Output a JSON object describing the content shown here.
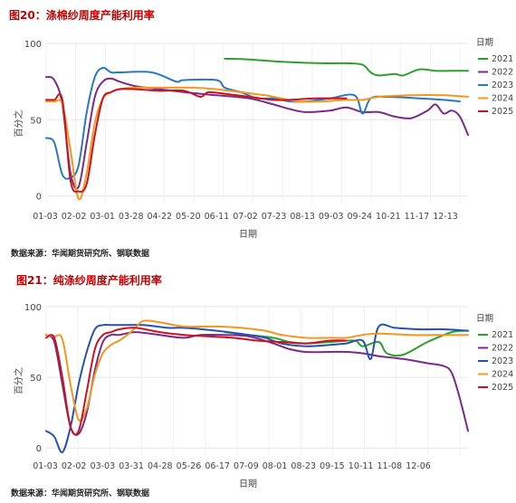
{
  "charts": [
    {
      "figure_title": "图20：涤棉纱周度产能利用率",
      "source": "数据来源：华闻期货研究所、钢联数据",
      "legend_title": "日期",
      "ylabel": "百分之",
      "xlabel": "日期"
    },
    {
      "figure_title": "图21：纯涤纱周度产能利用率",
      "source": "数据来源：华闻期货研究所、钢联数据",
      "legend_title": "日期",
      "ylabel": "百分之",
      "xlabel": "日期"
    }
  ],
  "chart_data": [
    {
      "type": "line",
      "title": "图20：涤棉纱周度产能利用率",
      "xlabel": "日期",
      "ylabel": "百分之",
      "legend_title": "日期",
      "legend_position": "right",
      "grid": true,
      "ylim": [
        -5,
        100
      ],
      "y_ticks": [
        0,
        50,
        100
      ],
      "x_ticks": [
        "01-03",
        "02-02",
        "03-01",
        "03-28",
        "04-22",
        "05-20",
        "06-11",
        "07-02",
        "07-23",
        "08-13",
        "09-03",
        "09-24",
        "10-21",
        "11-17",
        "12-13"
      ],
      "x_unit": "week of year (1-53)",
      "series": [
        {
          "name": "2021",
          "color": "#2ca02c",
          "x": [
            23,
            26,
            30,
            35,
            38,
            40,
            41,
            42,
            44,
            45,
            47,
            49,
            51,
            53
          ],
          "values": [
            90,
            89.5,
            88,
            87,
            87,
            86,
            81,
            79,
            80,
            79,
            83,
            82,
            82,
            82
          ]
        },
        {
          "name": "2022",
          "color": "#7b2a8b",
          "x": [
            1,
            2,
            3,
            4,
            5,
            6,
            7,
            8,
            9,
            10,
            12,
            15,
            18,
            22,
            26,
            29,
            31,
            33,
            36,
            38,
            40,
            42,
            44,
            46,
            48,
            49,
            50,
            51,
            52,
            53
          ],
          "values": [
            78,
            76,
            60,
            15,
            6,
            35,
            65,
            75,
            77,
            75,
            72,
            70,
            68,
            66,
            64,
            60,
            57,
            55,
            56,
            58,
            55,
            55,
            52,
            51,
            56,
            60,
            54,
            56,
            52,
            40
          ]
        },
        {
          "name": "2023",
          "color": "#2878c8",
          "x": [
            1,
            2,
            3,
            4,
            5,
            6,
            7,
            8,
            9,
            10,
            14,
            17,
            18,
            22,
            23,
            25,
            27,
            29,
            31,
            33,
            36,
            39,
            40,
            41,
            43,
            47,
            50,
            52
          ],
          "values": [
            38,
            35,
            14,
            12,
            20,
            55,
            78,
            84,
            81,
            81,
            81,
            75,
            76,
            76,
            71,
            68,
            64,
            64,
            62,
            62,
            64,
            66,
            54,
            64,
            65,
            64,
            63,
            62
          ]
        },
        {
          "name": "2024",
          "color": "#f5961e",
          "x": [
            1,
            2,
            3,
            4,
            5,
            6,
            7,
            8,
            9,
            10,
            12,
            15,
            19,
            22,
            25,
            28,
            30,
            32,
            35,
            38,
            40,
            42,
            46,
            50,
            53
          ],
          "values": [
            62,
            62,
            60,
            30,
            -2,
            15,
            48,
            64,
            68,
            70,
            71,
            71,
            71,
            70,
            68,
            66,
            64,
            62,
            62,
            63,
            63,
            65,
            66,
            66,
            65
          ]
        },
        {
          "name": "2025",
          "color": "#c8141e",
          "x": [
            1,
            2,
            3,
            4,
            5,
            6,
            7,
            8,
            9,
            10,
            12,
            15,
            18,
            20,
            21,
            23,
            26,
            29,
            31,
            34,
            36,
            38
          ],
          "values": [
            63,
            63,
            63,
            10,
            3,
            8,
            40,
            64,
            68,
            70,
            70,
            69,
            69,
            65,
            68,
            67,
            65,
            63,
            63,
            64,
            64,
            64
          ]
        }
      ]
    },
    {
      "type": "line",
      "title": "图21：纯涤纱周度产能利用率",
      "xlabel": "日期",
      "ylabel": "百分之",
      "legend_title": "日期",
      "legend_position": "right",
      "grid": true,
      "ylim": [
        -5,
        100
      ],
      "y_ticks": [
        0,
        50,
        100
      ],
      "x_ticks": [
        "01-03",
        "02-02",
        "03-03",
        "03-31",
        "04-28",
        "05-26",
        "06-17",
        "07-09",
        "08-01",
        "08-23",
        "09-15",
        "10-11",
        "11-08",
        "12-06"
      ],
      "x_unit": "week of year (1-53)",
      "series": [
        {
          "name": "2021",
          "color": "#2ca02c",
          "x": [
            23,
            26,
            29,
            31,
            33,
            36,
            39,
            40,
            42,
            43,
            45,
            48,
            51,
            53
          ],
          "values": [
            82,
            80,
            78,
            75,
            74,
            75,
            76,
            72,
            75,
            67,
            66,
            75,
            82,
            83
          ]
        },
        {
          "name": "2022",
          "color": "#7b2a8b",
          "x": [
            1,
            2,
            3,
            4,
            5,
            6,
            7,
            8,
            9,
            10,
            12,
            15,
            18,
            20,
            23,
            26,
            29,
            31,
            33,
            36,
            38,
            40,
            42,
            45,
            48,
            50,
            51,
            52,
            53
          ],
          "values": [
            80,
            75,
            45,
            15,
            10,
            25,
            55,
            75,
            80,
            80,
            82,
            80,
            78,
            80,
            80,
            79,
            74,
            70,
            68,
            68,
            68,
            67,
            65,
            63,
            60,
            58,
            53,
            35,
            12
          ]
        },
        {
          "name": "2023",
          "color": "#2850b4",
          "x": [
            1,
            2,
            3,
            4,
            5,
            6,
            7,
            8,
            9,
            10,
            13,
            16,
            18,
            22,
            26,
            28,
            30,
            33,
            36,
            38,
            40,
            41,
            42,
            44,
            47,
            50,
            53
          ],
          "values": [
            12,
            8,
            -3,
            15,
            45,
            68,
            84,
            87,
            87,
            87,
            87,
            85,
            85,
            83,
            80,
            78,
            74,
            72,
            73,
            74,
            76,
            63,
            86,
            85,
            84,
            84,
            83
          ]
        },
        {
          "name": "2024",
          "color": "#f5961e",
          "x": [
            1,
            2,
            3,
            4,
            5,
            6,
            7,
            8,
            9,
            10,
            11,
            12,
            13,
            15,
            18,
            22,
            25,
            28,
            30,
            33,
            36,
            38,
            40,
            42,
            46,
            50,
            53
          ],
          "values": [
            80,
            79,
            77,
            45,
            20,
            28,
            52,
            67,
            73,
            76,
            80,
            85,
            90,
            89,
            86,
            86,
            85,
            83,
            80,
            78,
            78,
            78,
            80,
            81,
            80,
            80,
            80
          ]
        },
        {
          "name": "2025",
          "color": "#c8141e",
          "x": [
            1,
            2,
            3,
            4,
            5,
            6,
            7,
            8,
            9,
            10,
            12,
            15,
            18,
            21,
            24,
            27,
            30,
            33,
            36,
            38
          ],
          "values": [
            78,
            78,
            50,
            15,
            12,
            40,
            70,
            80,
            82,
            84,
            85,
            82,
            80,
            79,
            78,
            76,
            75,
            74,
            76,
            76
          ]
        }
      ]
    }
  ]
}
